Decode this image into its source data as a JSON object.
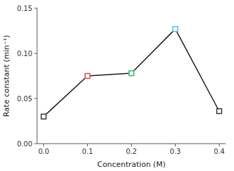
{
  "chart_data": {
    "type": "line",
    "xlabel": "Concentration (M)",
    "ylabel": "Rate constant (min⁻¹)",
    "x": [
      0.0,
      0.1,
      0.2,
      0.3,
      0.4
    ],
    "values": [
      0.03,
      0.075,
      0.078,
      0.127,
      0.036
    ],
    "color": "#1a1a1a",
    "colors": [
      "#404040",
      "#d9534f",
      "#3cb371",
      "#5bc0de",
      "#404040"
    ],
    "marker": "square",
    "xlim": [
      -0.015,
      0.415
    ],
    "ylim": [
      0.0,
      0.15
    ],
    "xticks": [
      {
        "value": 0.0,
        "label": "0.0"
      },
      0.1,
      0.2,
      0.3,
      0.4
    ],
    "yticks": [
      {
        "value": 0.0,
        "label": "0.00"
      },
      {
        "value": 0.05,
        "label": "0.05"
      },
      {
        "value": 0.1,
        "label": "0.10"
      },
      {
        "value": 0.15,
        "label": "0.15"
      }
    ]
  }
}
